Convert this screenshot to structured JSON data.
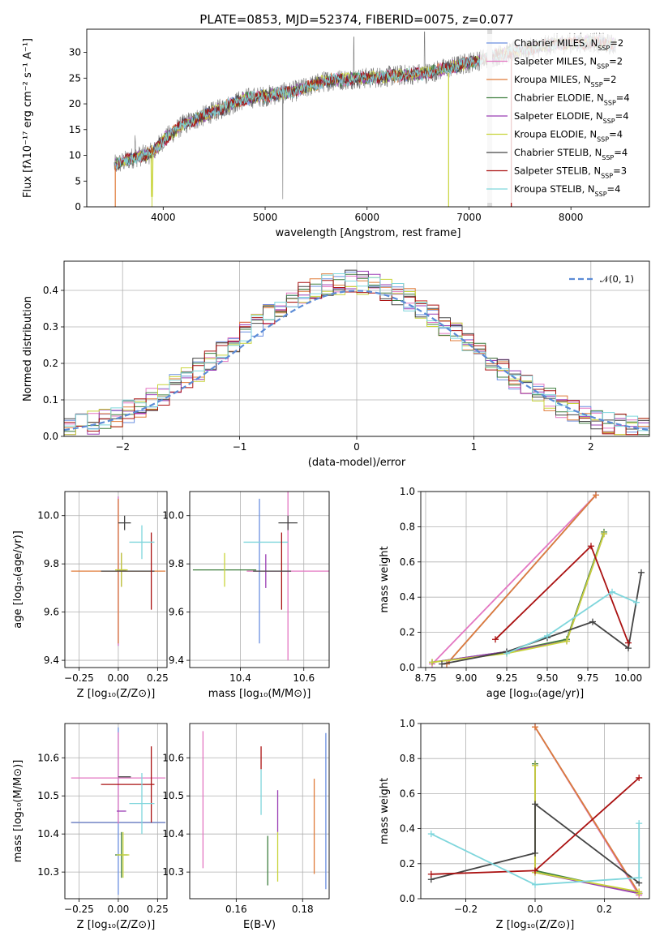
{
  "title": "PLATE=0853, MJD=52374, FIBERID=0075, z=0.077",
  "colors": {
    "chabrier_miles": "#6a8fe0",
    "salpeter_miles": "#e377c2",
    "kroupa_miles": "#e07b39",
    "chabrier_elodie": "#3f7f3f",
    "salpeter_elodie": "#9b3fb5",
    "kroupa_elodie": "#c8d43a",
    "chabrier_stelib": "#444444",
    "salpeter_stelib": "#aa1111",
    "kroupa_stelib": "#7fd6dc",
    "gauss": "#5b8bd6",
    "spectrum": "#777777",
    "grid": "#b0b0b0"
  },
  "panels": {
    "spectrum": {
      "xlabel": "wavelength [Angstrom, rest frame]",
      "ylabel": "Flux [fλ10⁻¹⁷ erg cm⁻² s⁻¹ A⁻¹]"
    },
    "hist": {
      "xlabel": "(data-model)/error",
      "ylabel": "Normed distribution",
      "legend": "𝒩(0, 1)"
    },
    "age_z": {
      "xlabel": "Z [log₁₀(Z/Z⊙)]",
      "ylabel": "age  [log₁₀(age/yr)]"
    },
    "age_mass": {
      "xlabel": "mass [log₁₀(M/M⊙)]"
    },
    "mw_age": {
      "xlabel": "age  [log₁₀(age/yr)]",
      "ylabel": "mass weight"
    },
    "mass_z": {
      "xlabel": "Z [log₁₀(Z/Z⊙)]",
      "ylabel": "mass [log₁₀(M/M⊙)]"
    },
    "mass_ebv": {
      "xlabel": "E(B-V)"
    },
    "mw_z": {
      "xlabel": "Z [log₁₀(Z/Z⊙)]",
      "ylabel": "mass weight"
    }
  },
  "chart_data": [
    {
      "type": "line",
      "title": "PLATE=0853, MJD=52374, FIBERID=0075, z=0.077",
      "xlabel": "wavelength [Angstrom, rest frame]",
      "ylabel": "Flux [fλ10⁻¹⁷ erg cm⁻² s⁻¹ A⁻¹]",
      "xlim": [
        3250,
        8770
      ],
      "ylim": [
        0,
        34.5
      ],
      "xticks": [
        4000,
        5000,
        6000,
        7000,
        8000
      ],
      "yticks": [
        0,
        5,
        10,
        15,
        20,
        25,
        30
      ],
      "legend_position": "top-right",
      "series": [
        {
          "name": "Chabrier MILES, N_SSP=2",
          "nssp": "2"
        },
        {
          "name": "Salpeter MILES, N_SSP=2",
          "nssp": "2"
        },
        {
          "name": "Kroupa MILES, N_SSP=2",
          "nssp": "2"
        },
        {
          "name": "Chabrier ELODIE, N_SSP=4",
          "nssp": "4"
        },
        {
          "name": "Salpeter ELODIE, N_SSP=4",
          "nssp": "4"
        },
        {
          "name": "Kroupa ELODIE, N_SSP=4",
          "nssp": "4"
        },
        {
          "name": "Chabrier STELIB, N_SSP=4",
          "nssp": "4"
        },
        {
          "name": "Salpeter STELIB, N_SSP=3",
          "nssp": "3"
        },
        {
          "name": "Kroupa STELIB, N_SSP=4",
          "nssp": "4"
        }
      ],
      "continuum_x": [
        3520,
        3700,
        3900,
        4000,
        4200,
        4500,
        4800,
        5000,
        5300,
        5600,
        6000,
        6300,
        6600,
        7000,
        7400,
        7800,
        8200,
        8400
      ],
      "continuum_y": [
        8,
        9.5,
        10.5,
        13,
        16,
        18.5,
        21,
        21.5,
        22.5,
        24.5,
        25,
        25.5,
        26,
        28,
        30,
        31.5,
        32,
        31.5
      ]
    },
    {
      "type": "line",
      "xlabel": "(data-model)/error",
      "ylabel": "Normed distribution",
      "xlim": [
        -2.5,
        2.5
      ],
      "ylim": [
        0,
        0.48
      ],
      "xticks": [
        -2,
        -1,
        0,
        1,
        2
      ],
      "yticks": [
        0.0,
        0.1,
        0.2,
        0.3,
        0.4
      ],
      "bins_start": -2.5,
      "bin_width": 0.1,
      "base_mean": 0.0,
      "base_sigma": 1.0,
      "legend_position": "top-right",
      "gauss_label": "𝒩(0, 1)"
    },
    {
      "type": "scatter",
      "xlabel": "Z [log₁₀(Z/Z⊙)]",
      "ylabel": "age  [log₁₀(age/yr)]",
      "xlim": [
        -0.34,
        0.31
      ],
      "ylim": [
        9.37,
        10.1
      ],
      "xticks": [
        -0.25,
        0.0,
        0.25
      ],
      "yticks": [
        9.4,
        9.6,
        9.8,
        10.0
      ],
      "points": [
        {
          "x": 0.0,
          "y": 9.77,
          "xerr": 0.0,
          "yerr": 0.31,
          "c": "chabrier_miles"
        },
        {
          "x": 0.0,
          "y": 9.77,
          "xerr": 0.0,
          "yerr": 0.31,
          "c": "salpeter_miles"
        },
        {
          "x": 0.0,
          "y": 9.77,
          "xerr": 0.3,
          "yerr": 0.3,
          "c": "kroupa_miles"
        },
        {
          "x": 0.02,
          "y": 9.775,
          "xerr": 0.03,
          "yerr": 0.07,
          "c": "chabrier_elodie"
        },
        {
          "x": 0.02,
          "y": 9.775,
          "xerr": 0.03,
          "yerr": 0.07,
          "c": "salpeter_elodie"
        },
        {
          "x": 0.02,
          "y": 9.775,
          "xerr": 0.04,
          "yerr": 0.07,
          "c": "kroupa_elodie"
        },
        {
          "x": 0.04,
          "y": 9.97,
          "xerr": 0.04,
          "yerr": 0.03,
          "c": "chabrier_stelib"
        },
        {
          "x": 0.06,
          "y": 9.77,
          "xerr": 0.17,
          "yerr": 0.0,
          "c": "chabrier_stelib"
        },
        {
          "x": 0.21,
          "y": 9.77,
          "xerr": 0.0,
          "yerr": 0.16,
          "c": "salpeter_stelib"
        },
        {
          "x": 0.15,
          "y": 9.89,
          "xerr": 0.08,
          "yerr": 0.07,
          "c": "kroupa_stelib"
        }
      ]
    },
    {
      "type": "scatter",
      "xlabel": "mass [log₁₀(M/M⊙)]",
      "xlim": [
        10.24,
        10.68
      ],
      "ylim": [
        9.37,
        10.1
      ],
      "xticks": [
        10.4,
        10.6
      ],
      "yticks": [
        9.4,
        9.6,
        9.8,
        10.0
      ],
      "points": [
        {
          "x": 10.35,
          "y": 9.775,
          "xerr": 0.1,
          "yerr": 0.0,
          "c": "chabrier_elodie"
        },
        {
          "x": 10.35,
          "y": 9.775,
          "xerr": 0.0,
          "yerr": 0.07,
          "c": "kroupa_elodie"
        },
        {
          "x": 10.46,
          "y": 9.77,
          "xerr": 0.0,
          "yerr": 0.3,
          "c": "chabrier_miles"
        },
        {
          "x": 10.48,
          "y": 9.77,
          "xerr": 0.0,
          "yerr": 0.07,
          "c": "salpeter_elodie"
        },
        {
          "x": 10.55,
          "y": 9.77,
          "xerr": 0.13,
          "yerr": 0.37,
          "c": "salpeter_miles"
        },
        {
          "x": 10.48,
          "y": 9.89,
          "xerr": 0.07,
          "yerr": 0.0,
          "c": "kroupa_stelib"
        },
        {
          "x": 10.53,
          "y": 9.77,
          "xerr": 0.0,
          "yerr": 0.16,
          "c": "salpeter_stelib"
        },
        {
          "x": 10.55,
          "y": 9.97,
          "xerr": 0.03,
          "yerr": 0.03,
          "c": "chabrier_stelib"
        },
        {
          "x": 10.5,
          "y": 9.77,
          "xerr": 0.06,
          "yerr": 0.0,
          "c": "chabrier_stelib"
        }
      ]
    },
    {
      "type": "line",
      "xlabel": "age  [log₁₀(age/yr)]",
      "ylabel": "mass weight",
      "xlim": [
        8.72,
        10.13
      ],
      "ylim": [
        0,
        1.0
      ],
      "xticks": [
        8.75,
        9.0,
        9.25,
        9.5,
        9.75,
        10.0
      ],
      "yticks": [
        0.0,
        0.2,
        0.4,
        0.6,
        0.8,
        1.0
      ],
      "series": [
        {
          "c": "salpeter_miles",
          "x": [
            8.79,
            9.8
          ],
          "y": [
            0.02,
            0.98
          ]
        },
        {
          "c": "chabrier_miles",
          "x": [
            8.88,
            9.8
          ],
          "y": [
            0.02,
            0.98
          ]
        },
        {
          "c": "kroupa_miles",
          "x": [
            8.88,
            9.8
          ],
          "y": [
            0.02,
            0.98
          ]
        },
        {
          "c": "chabrier_elodie",
          "x": [
            8.79,
            9.25,
            9.62,
            9.85
          ],
          "y": [
            0.03,
            0.09,
            0.16,
            0.77
          ]
        },
        {
          "c": "salpeter_elodie",
          "x": [
            8.79,
            9.25,
            9.62,
            9.85
          ],
          "y": [
            0.03,
            0.09,
            0.15,
            0.76
          ]
        },
        {
          "c": "kroupa_elodie",
          "x": [
            8.79,
            9.25,
            9.62,
            9.85
          ],
          "y": [
            0.03,
            0.08,
            0.15,
            0.76
          ]
        },
        {
          "c": "chabrier_stelib",
          "x": [
            8.85,
            9.25,
            9.5,
            9.78,
            10.0,
            10.08
          ],
          "y": [
            0.02,
            0.09,
            0.17,
            0.26,
            0.11,
            0.54
          ]
        },
        {
          "c": "salpeter_stelib",
          "x": [
            9.18,
            9.77,
            10.0
          ],
          "y": [
            0.16,
            0.69,
            0.14
          ]
        },
        {
          "c": "kroupa_stelib",
          "x": [
            9.25,
            9.5,
            9.9,
            10.05
          ],
          "y": [
            0.08,
            0.18,
            0.43,
            0.37
          ]
        }
      ]
    },
    {
      "type": "scatter",
      "xlabel": "Z [log₁₀(Z/Z⊙)]",
      "ylabel": "mass [log₁₀(M/M⊙)]",
      "xlim": [
        -0.34,
        0.31
      ],
      "ylim": [
        10.23,
        10.69
      ],
      "xticks": [
        -0.25,
        0.0,
        0.25
      ],
      "yticks": [
        10.3,
        10.4,
        10.5,
        10.6
      ],
      "points": [
        {
          "x": 0.0,
          "y": 10.43,
          "xerr": 0.3,
          "yerr": 0.0,
          "c": "kroupa_miles"
        },
        {
          "x": 0.0,
          "y": 10.43,
          "xerr": 0.3,
          "yerr": 0.0,
          "c": "chabrier_miles"
        },
        {
          "x": 0.0,
          "y": 10.547,
          "xerr": 0.3,
          "yerr": 0.0,
          "c": "salpeter_miles"
        },
        {
          "x": 0.0,
          "y": 10.46,
          "xerr": 0.0,
          "yerr": 0.22,
          "c": "chabrier_miles"
        },
        {
          "x": 0.0,
          "y": 10.547,
          "xerr": 0.0,
          "yerr": 0.12,
          "c": "salpeter_miles"
        },
        {
          "x": 0.02,
          "y": 10.345,
          "xerr": 0.04,
          "yerr": 0.0,
          "c": "chabrier_elodie"
        },
        {
          "x": 0.02,
          "y": 10.345,
          "xerr": 0.0,
          "yerr": 0.06,
          "c": "chabrier_elodie"
        },
        {
          "x": 0.02,
          "y": 10.46,
          "xerr": 0.03,
          "yerr": 0.0,
          "c": "salpeter_elodie"
        },
        {
          "x": 0.03,
          "y": 10.345,
          "xerr": 0.04,
          "yerr": 0.06,
          "c": "kroupa_elodie"
        },
        {
          "x": 0.04,
          "y": 10.55,
          "xerr": 0.04,
          "yerr": 0.0,
          "c": "chabrier_stelib"
        },
        {
          "x": 0.06,
          "y": 10.53,
          "xerr": 0.17,
          "yerr": 0.0,
          "c": "salpeter_stelib"
        },
        {
          "x": 0.21,
          "y": 10.53,
          "xerr": 0.0,
          "yerr": 0.1,
          "c": "salpeter_stelib"
        },
        {
          "x": 0.15,
          "y": 10.48,
          "xerr": 0.08,
          "yerr": 0.08,
          "c": "kroupa_stelib"
        }
      ]
    },
    {
      "type": "scatter",
      "xlabel": "E(B-V)",
      "xlim": [
        0.146,
        0.188
      ],
      "ylim": [
        10.23,
        10.69
      ],
      "xticks": [
        0.16,
        0.18
      ],
      "yticks": [
        10.3,
        10.4,
        10.5,
        10.6
      ],
      "points": [
        {
          "x": 0.15,
          "y": 10.49,
          "xerr": 0.0,
          "yerr": 0.18,
          "c": "salpeter_miles"
        },
        {
          "x": 0.1675,
          "y": 10.6,
          "xerr": 0.0,
          "yerr": 0.03,
          "c": "salpeter_stelib"
        },
        {
          "x": 0.1675,
          "y": 10.51,
          "xerr": 0.0,
          "yerr": 0.06,
          "c": "kroupa_stelib"
        },
        {
          "x": 0.1695,
          "y": 10.33,
          "xerr": 0.0,
          "yerr": 0.065,
          "c": "chabrier_elodie"
        },
        {
          "x": 0.1725,
          "y": 10.46,
          "xerr": 0.0,
          "yerr": 0.055,
          "c": "salpeter_elodie"
        },
        {
          "x": 0.1725,
          "y": 10.34,
          "xerr": 0.0,
          "yerr": 0.065,
          "c": "kroupa_elodie"
        },
        {
          "x": 0.1835,
          "y": 10.42,
          "xerr": 0.0,
          "yerr": 0.125,
          "c": "kroupa_miles"
        },
        {
          "x": 0.187,
          "y": 10.46,
          "xerr": 0.0,
          "yerr": 0.205,
          "c": "chabrier_miles"
        }
      ]
    },
    {
      "type": "line",
      "xlabel": "Z [log₁₀(Z/Z⊙)]",
      "ylabel": "mass weight",
      "xlim": [
        -0.33,
        0.33
      ],
      "ylim": [
        0,
        1.0
      ],
      "xticks": [
        -0.2,
        0.0,
        0.2
      ],
      "yticks": [
        0.0,
        0.2,
        0.4,
        0.6,
        0.8,
        1.0
      ],
      "series": [
        {
          "c": "salpeter_miles",
          "x": [
            0.0,
            0.3
          ],
          "y": [
            0.98,
            0.02
          ]
        },
        {
          "c": "chabrier_miles",
          "x": [
            0.0,
            0.3
          ],
          "y": [
            0.98,
            0.03
          ]
        },
        {
          "c": "kroupa_miles",
          "x": [
            0.0,
            0.3
          ],
          "y": [
            0.98,
            0.03
          ]
        },
        {
          "c": "chabrier_elodie",
          "x": [
            0.0,
            0.0,
            0.3,
            0.3
          ],
          "y": [
            0.77,
            0.16,
            0.03,
            0.03
          ]
        },
        {
          "c": "salpeter_elodie",
          "x": [
            0.0,
            0.0,
            0.3,
            0.3
          ],
          "y": [
            0.76,
            0.15,
            0.03,
            0.03
          ]
        },
        {
          "c": "kroupa_elodie",
          "x": [
            0.0,
            0.0,
            0.3,
            0.3
          ],
          "y": [
            0.76,
            0.15,
            0.04,
            0.03
          ]
        },
        {
          "c": "chabrier_stelib",
          "x": [
            -0.3,
            0.0,
            0.0,
            0.3
          ],
          "y": [
            0.11,
            0.26,
            0.54,
            0.09
          ]
        },
        {
          "c": "salpeter_stelib",
          "x": [
            -0.3,
            0.0,
            0.3
          ],
          "y": [
            0.14,
            0.16,
            0.69
          ]
        },
        {
          "c": "kroupa_stelib",
          "x": [
            -0.3,
            0.0,
            0.3,
            0.3
          ],
          "y": [
            0.37,
            0.08,
            0.12,
            0.43
          ]
        }
      ]
    }
  ]
}
